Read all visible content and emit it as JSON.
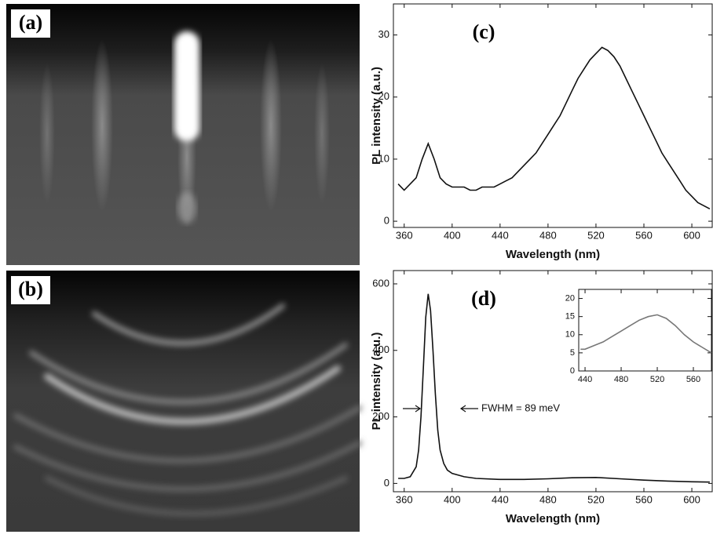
{
  "panels": {
    "a": {
      "label": "(a)"
    },
    "b": {
      "label": "(b)"
    }
  },
  "chart_data": [
    {
      "type": "line",
      "label": "(c)",
      "x_label": "Wavelength (nm)",
      "y_label": "PL intensity (a.u.)",
      "color": "#111111",
      "x": [
        355,
        360,
        365,
        370,
        375,
        380,
        385,
        390,
        395,
        400,
        405,
        410,
        415,
        420,
        425,
        430,
        435,
        440,
        445,
        450,
        455,
        460,
        465,
        470,
        475,
        480,
        485,
        490,
        495,
        500,
        505,
        510,
        515,
        520,
        525,
        530,
        535,
        540,
        545,
        550,
        555,
        560,
        565,
        570,
        575,
        580,
        585,
        590,
        595,
        600,
        605,
        610,
        615
      ],
      "values": [
        6,
        5,
        6,
        7,
        10,
        12.5,
        10,
        7,
        6,
        5.5,
        5.5,
        5.5,
        5,
        5,
        5.5,
        5.5,
        5.5,
        6,
        6.5,
        7,
        8,
        9,
        10,
        11,
        12.5,
        14,
        15.5,
        17,
        19,
        21,
        23,
        24.5,
        26,
        27,
        28,
        27.5,
        26.5,
        25,
        23,
        21,
        19,
        17,
        15,
        13,
        11,
        9.5,
        8,
        6.5,
        5,
        4,
        3,
        2.5,
        2
      ],
      "xlim": [
        351,
        617
      ],
      "xticks": [
        360,
        400,
        440,
        480,
        520,
        560,
        600
      ],
      "ylim": [
        -1,
        35
      ],
      "yticks": [
        0,
        10,
        20,
        30
      ]
    },
    {
      "type": "line",
      "label": "(d)",
      "x_label": "Wavelength (nm)",
      "y_label": "PL intensity (a.u.)",
      "color": "#111111",
      "annotation": "FWHM = 89 meV",
      "x": [
        355,
        360,
        365,
        370,
        372,
        374,
        376,
        378,
        380,
        382,
        384,
        386,
        388,
        390,
        393,
        396,
        400,
        410,
        420,
        440,
        460,
        480,
        500,
        520,
        540,
        560,
        580,
        600,
        615
      ],
      "values": [
        15,
        15,
        20,
        50,
        100,
        200,
        350,
        500,
        570,
        520,
        400,
        270,
        160,
        100,
        60,
        40,
        30,
        20,
        15,
        12,
        12,
        14,
        17,
        18,
        14,
        10,
        7,
        5,
        4
      ],
      "xlim": [
        351,
        617
      ],
      "xticks": [
        360,
        400,
        440,
        480,
        520,
        560,
        600
      ],
      "ylim": [
        -25,
        640
      ],
      "yticks": [
        0,
        200,
        400,
        600
      ]
    },
    {
      "type": "line",
      "color": "#777777",
      "x": [
        435,
        440,
        450,
        460,
        470,
        480,
        490,
        500,
        510,
        520,
        530,
        540,
        550,
        560,
        570,
        580
      ],
      "values": [
        6,
        6,
        7,
        8,
        9.5,
        11,
        12.5,
        14,
        15,
        15.5,
        14.5,
        12.5,
        10,
        8,
        6.5,
        5
      ],
      "xlim": [
        433,
        580
      ],
      "xticks": [
        440,
        480,
        520,
        560
      ],
      "ylim": [
        0,
        22.5
      ],
      "yticks": [
        0,
        5,
        10,
        15,
        20
      ]
    }
  ]
}
